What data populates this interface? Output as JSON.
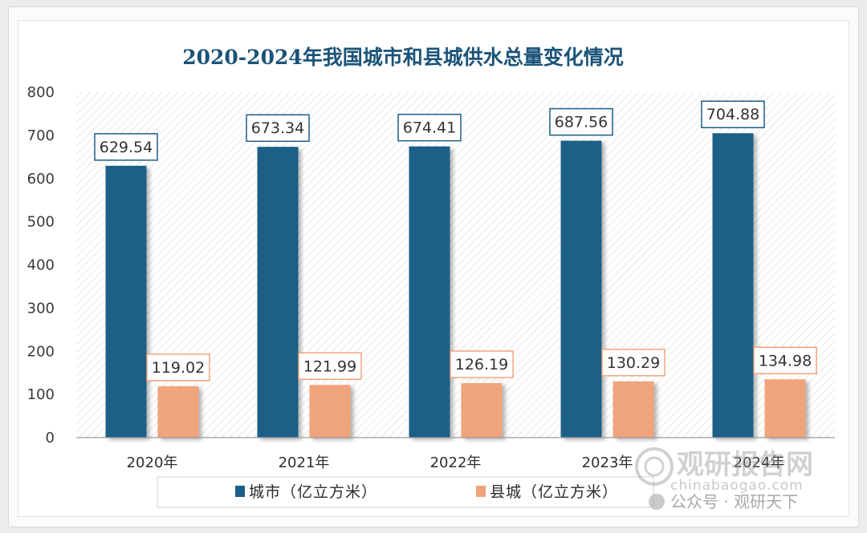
{
  "chart_data": {
    "type": "bar",
    "title": "2020-2024年我国城市和县城供水总量变化情况",
    "categories": [
      "2020年",
      "2021年",
      "2022年",
      "2023年",
      "2024年"
    ],
    "series": [
      {
        "name": "城市（亿立方米）",
        "color": "#1b5e87",
        "values": [
          629.54,
          673.34,
          674.41,
          687.56,
          704.88
        ],
        "labels": [
          "629.54",
          "673.34",
          "674.41",
          "687.56",
          "704.88"
        ]
      },
      {
        "name": "县城（亿立方米）",
        "color": "#f0a47c",
        "values": [
          119.02,
          121.99,
          126.19,
          130.29,
          134.98
        ],
        "labels": [
          "119.02",
          "121.99",
          "126.19",
          "130.29",
          "134.98"
        ]
      }
    ],
    "ylim": [
      0,
      800
    ],
    "yticks": [
      0,
      100,
      200,
      300,
      400,
      500,
      600,
      700,
      800
    ],
    "legend_position": "bottom",
    "grid": false
  },
  "watermark": {
    "brand": "观研报告网",
    "url": "chinabaogao.com",
    "account": "公众号 · 观研天下"
  }
}
